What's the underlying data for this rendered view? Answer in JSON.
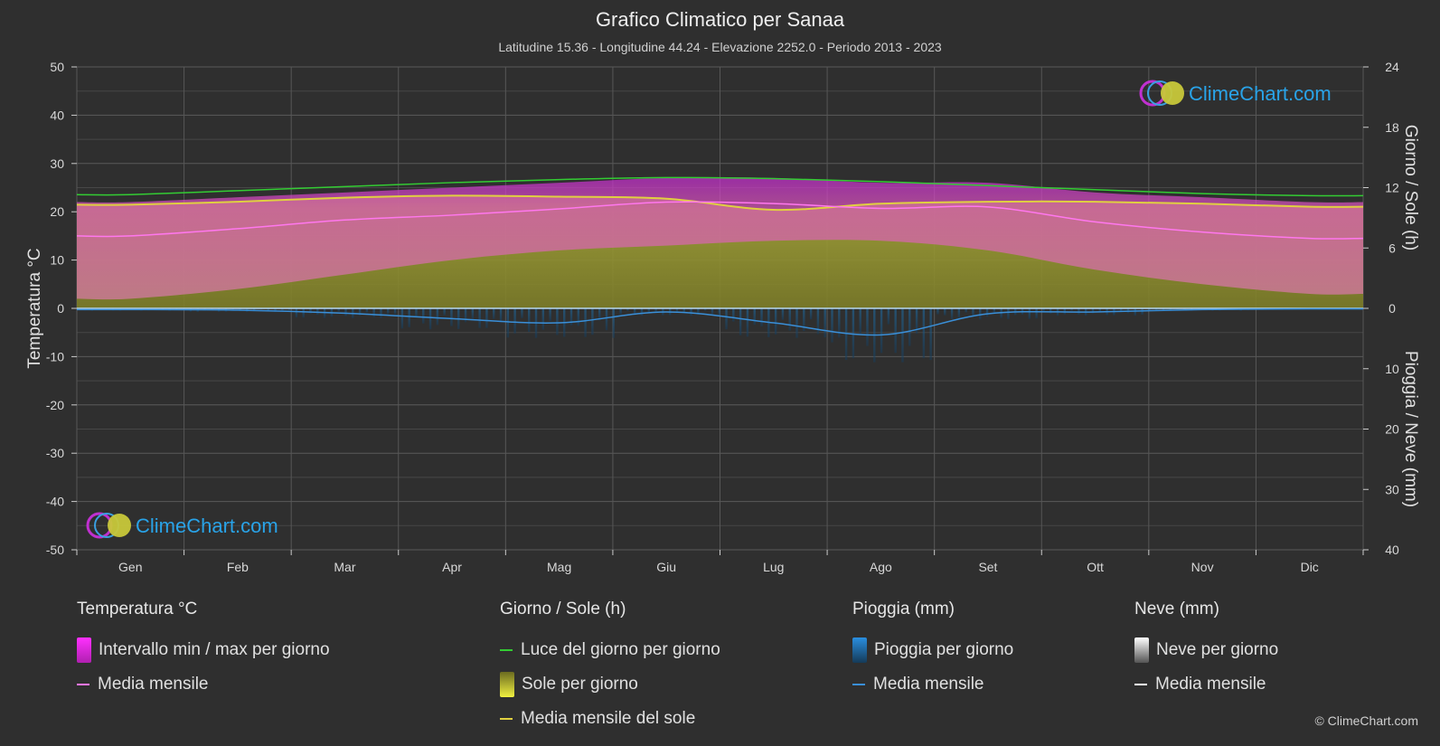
{
  "header": {
    "title": "Grafico Climatico per Sanaa",
    "subtitle": "Latitudine 15.36 - Longitudine 44.24 - Elevazione 2252.0 - Periodo 2013 - 2023"
  },
  "watermark": {
    "text": "ClimeChart.com"
  },
  "copyright": "© ClimeChart.com",
  "colors": {
    "background": "#2f2f2f",
    "temp_range": "#d957c8",
    "temp_range_top": "#c42dd0",
    "sunshine": "#9e9e2e",
    "daylight_line": "#33cc33",
    "sun_mean_line": "#e0d040",
    "temp_mean_line": "#ff77ee",
    "rain_bar": "#1e6aa0",
    "rain_mean_line": "#3a8fd8",
    "snow_mean_line": "#ffffff",
    "watermark_text": "#29a3e8"
  },
  "chart_data": {
    "type": "area",
    "months": [
      "Gen",
      "Feb",
      "Mar",
      "Apr",
      "Mag",
      "Giu",
      "Lug",
      "Ago",
      "Set",
      "Ott",
      "Nov",
      "Dic"
    ],
    "axes": {
      "left": {
        "label": "Temperatura °C",
        "min": -50,
        "max": 50,
        "ticks": [
          50,
          40,
          30,
          20,
          10,
          0,
          -10,
          -20,
          -30,
          -40,
          -50
        ]
      },
      "right_top": {
        "label": "Giorno / Sole (h)",
        "min": 0,
        "max": 24,
        "ticks": [
          24,
          18,
          12,
          6,
          0
        ]
      },
      "right_bottom": {
        "label": "Pioggia / Neve (mm)",
        "min": 0,
        "max": 40,
        "ticks": [
          10,
          20,
          30,
          40
        ]
      }
    },
    "series": {
      "daylight_hours": [
        11.3,
        11.7,
        12.1,
        12.5,
        12.8,
        13.0,
        12.9,
        12.6,
        12.2,
        11.8,
        11.4,
        11.2
      ],
      "sunshine_hours": [
        10.3,
        10.6,
        11.0,
        11.2,
        11.1,
        10.9,
        9.8,
        10.4,
        10.6,
        10.6,
        10.4,
        10.1
      ],
      "temp_max_daily": [
        22,
        23,
        24,
        25,
        26,
        27,
        27,
        26,
        26,
        24,
        23,
        22
      ],
      "temp_min_daily": [
        2,
        4,
        7,
        10,
        12,
        13,
        14,
        14,
        12,
        8,
        5,
        3
      ],
      "temp_mean_monthly": [
        15.0,
        16.5,
        18.3,
        19.3,
        20.6,
        22.0,
        21.7,
        20.7,
        21.0,
        17.9,
        15.8,
        14.5
      ],
      "rain_mean_monthly_mm": [
        0.2,
        0.3,
        0.8,
        1.7,
        2.4,
        0.6,
        2.4,
        4.4,
        0.9,
        0.6,
        0.2,
        0.1
      ],
      "snow_mean_monthly_mm": [
        0,
        0,
        0,
        0,
        0,
        0,
        0,
        0,
        0,
        0,
        0,
        0
      ]
    }
  },
  "legend": {
    "temperature": {
      "heading": "Temperatura °C",
      "items": [
        {
          "label": "Intervallo min / max per giorno",
          "swatch": "box-magenta"
        },
        {
          "label": "Media mensile",
          "swatch": "line-pink"
        }
      ]
    },
    "sun": {
      "heading": "Giorno / Sole (h)",
      "items": [
        {
          "label": "Luce del giorno per giorno",
          "swatch": "line-green"
        },
        {
          "label": "Sole per giorno",
          "swatch": "box-yellow"
        },
        {
          "label": "Media mensile del sole",
          "swatch": "line-yellow"
        }
      ]
    },
    "rain": {
      "heading": "Pioggia (mm)",
      "items": [
        {
          "label": "Pioggia per giorno",
          "swatch": "box-blue"
        },
        {
          "label": "Media mensile",
          "swatch": "line-blue"
        }
      ]
    },
    "snow": {
      "heading": "Neve (mm)",
      "items": [
        {
          "label": "Neve per giorno",
          "swatch": "box-white"
        },
        {
          "label": "Media mensile",
          "swatch": "line-white"
        }
      ]
    }
  }
}
